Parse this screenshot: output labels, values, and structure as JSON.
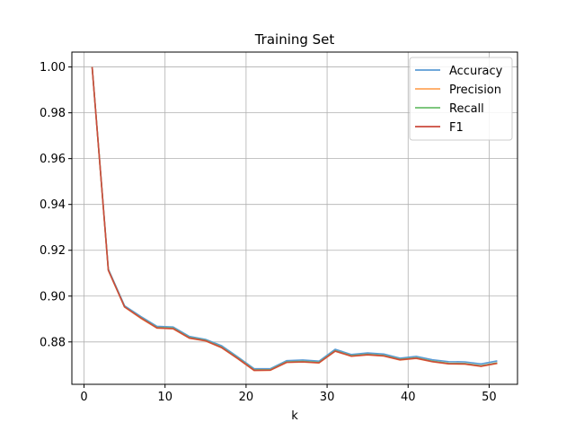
{
  "chart_data": {
    "type": "line",
    "title": "Training Set",
    "xlabel": "k",
    "ylabel": "",
    "xlim": [
      -1.5,
      53.5
    ],
    "ylim": [
      0.8615,
      1.0065
    ],
    "xticks": [
      0,
      10,
      20,
      30,
      40,
      50
    ],
    "yticks": [
      0.88,
      0.9,
      0.92,
      0.94,
      0.96,
      0.98,
      1.0
    ],
    "ytick_labels": [
      "0.88",
      "0.90",
      "0.92",
      "0.94",
      "0.96",
      "0.98",
      "1.00"
    ],
    "grid": true,
    "legend_position": "top-right",
    "x": [
      1,
      3,
      5,
      7,
      9,
      11,
      13,
      15,
      17,
      19,
      21,
      23,
      25,
      27,
      29,
      31,
      33,
      35,
      37,
      39,
      41,
      43,
      45,
      47,
      49,
      51
    ],
    "series": [
      {
        "name": "Accuracy",
        "color": "#5b9bd5",
        "values": [
          1.0,
          0.9118,
          0.8958,
          0.8911,
          0.8868,
          0.8865,
          0.8824,
          0.8811,
          0.8783,
          0.8734,
          0.8683,
          0.8683,
          0.8718,
          0.8721,
          0.8716,
          0.8768,
          0.8745,
          0.8752,
          0.8747,
          0.8729,
          0.8737,
          0.8722,
          0.8714,
          0.8713,
          0.8704,
          0.8717
        ]
      },
      {
        "name": "Precision",
        "color": "#ffa65c",
        "values": [
          1.0,
          0.9112,
          0.8952,
          0.8903,
          0.886,
          0.8857,
          0.8816,
          0.8804,
          0.8774,
          0.8726,
          0.8675,
          0.8676,
          0.871,
          0.8712,
          0.8708,
          0.8759,
          0.8737,
          0.8743,
          0.8738,
          0.8721,
          0.8728,
          0.8713,
          0.8704,
          0.8703,
          0.8693,
          0.8706
        ]
      },
      {
        "name": "Recall",
        "color": "#6cbe6c",
        "values": [
          1.0,
          0.9114,
          0.8954,
          0.8906,
          0.8863,
          0.886,
          0.8819,
          0.8807,
          0.8777,
          0.8729,
          0.8678,
          0.8679,
          0.8713,
          0.8715,
          0.8711,
          0.8762,
          0.874,
          0.8746,
          0.8741,
          0.8724,
          0.8731,
          0.8716,
          0.8707,
          0.8706,
          0.8696,
          0.8709
        ]
      },
      {
        "name": "F1",
        "color": "#cc4a3c",
        "values": [
          1.0,
          0.9113,
          0.8953,
          0.8905,
          0.8861,
          0.8858,
          0.8817,
          0.8805,
          0.8775,
          0.8727,
          0.8676,
          0.8677,
          0.8711,
          0.8713,
          0.8709,
          0.876,
          0.8738,
          0.8744,
          0.8739,
          0.8722,
          0.8729,
          0.8714,
          0.8705,
          0.8704,
          0.8694,
          0.8707
        ]
      }
    ]
  }
}
